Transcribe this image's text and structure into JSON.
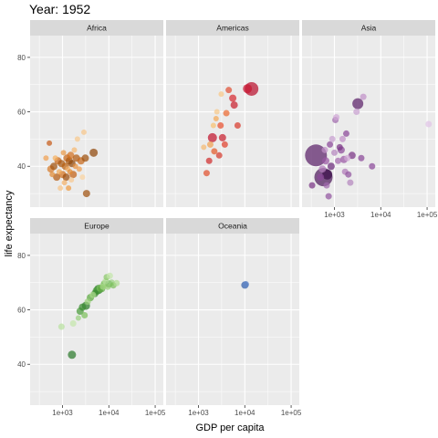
{
  "chart_data": {
    "type": "scatter",
    "title": "Year: 1952",
    "xlabel": "GDP per capita",
    "ylabel": "life expectancy",
    "x_scale": "log10",
    "xlim": [
      200,
      150000
    ],
    "ylim": [
      25,
      88
    ],
    "x_ticks": [
      {
        "value": 1000,
        "label": "1e+03"
      },
      {
        "value": 10000,
        "label": "1e+04"
      },
      {
        "value": 100000,
        "label": "1e+05"
      }
    ],
    "y_ticks": [
      {
        "value": 40,
        "label": "40"
      },
      {
        "value": 60,
        "label": "60"
      },
      {
        "value": 80,
        "label": "80"
      }
    ],
    "grid": true,
    "legend": "none",
    "panels": [
      {
        "name": "Africa",
        "points": [
          {
            "x": 440,
            "y": 43,
            "size": 3,
            "color": "#f0a050"
          },
          {
            "x": 520,
            "y": 48.5,
            "size": 3,
            "color": "#c65a18"
          },
          {
            "x": 560,
            "y": 39,
            "size": 4,
            "color": "#d57a2a"
          },
          {
            "x": 600,
            "y": 37,
            "size": 3,
            "color": "#e08a35"
          },
          {
            "x": 650,
            "y": 40,
            "size": 4,
            "color": "#a0520f"
          },
          {
            "x": 700,
            "y": 43,
            "size": 3,
            "color": "#f5b060"
          },
          {
            "x": 750,
            "y": 36,
            "size": 4,
            "color": "#b35c14"
          },
          {
            "x": 800,
            "y": 42,
            "size": 4,
            "color": "#c96618"
          },
          {
            "x": 850,
            "y": 38,
            "size": 3,
            "color": "#f0a858"
          },
          {
            "x": 900,
            "y": 32,
            "size": 3,
            "color": "#f7c486"
          },
          {
            "x": 950,
            "y": 41,
            "size": 4,
            "color": "#a6560f"
          },
          {
            "x": 1000,
            "y": 37,
            "size": 4,
            "color": "#d0701f"
          },
          {
            "x": 1050,
            "y": 45,
            "size": 3,
            "color": "#e89848"
          },
          {
            "x": 1100,
            "y": 34,
            "size": 3,
            "color": "#f2b068"
          },
          {
            "x": 1150,
            "y": 40,
            "size": 4,
            "color": "#b8600f"
          },
          {
            "x": 1200,
            "y": 36,
            "size": 4,
            "color": "#9b4c0c"
          },
          {
            "x": 1250,
            "y": 43,
            "size": 4,
            "color": "#c86618"
          },
          {
            "x": 1300,
            "y": 39,
            "size": 3,
            "color": "#f3b26a"
          },
          {
            "x": 1350,
            "y": 32,
            "size": 3,
            "color": "#ef9a40"
          },
          {
            "x": 1400,
            "y": 42,
            "size": 4,
            "color": "#a85810"
          },
          {
            "x": 1450,
            "y": 38,
            "size": 3,
            "color": "#e08a35"
          },
          {
            "x": 1500,
            "y": 44,
            "size": 4,
            "color": "#d17020"
          },
          {
            "x": 1550,
            "y": 35,
            "size": 3,
            "color": "#f7c890"
          },
          {
            "x": 1600,
            "y": 41,
            "size": 4,
            "color": "#8f460a"
          },
          {
            "x": 1700,
            "y": 37,
            "size": 4,
            "color": "#c26014"
          },
          {
            "x": 1800,
            "y": 46,
            "size": 3,
            "color": "#f5b870"
          },
          {
            "x": 1900,
            "y": 40,
            "size": 3,
            "color": "#e49040"
          },
          {
            "x": 2000,
            "y": 43,
            "size": 4,
            "color": "#b05a10"
          },
          {
            "x": 2100,
            "y": 50,
            "size": 3,
            "color": "#f7c88c"
          },
          {
            "x": 2300,
            "y": 39,
            "size": 3,
            "color": "#f0a050"
          },
          {
            "x": 2500,
            "y": 42,
            "size": 4,
            "color": "#c86a1c"
          },
          {
            "x": 2700,
            "y": 36,
            "size": 3,
            "color": "#f9d2a0"
          },
          {
            "x": 2900,
            "y": 52.5,
            "size": 3,
            "color": "#f7c68a"
          },
          {
            "x": 3100,
            "y": 43,
            "size": 4,
            "color": "#9e500c"
          },
          {
            "x": 3300,
            "y": 30,
            "size": 4,
            "color": "#a0520f"
          },
          {
            "x": 4700,
            "y": 45,
            "size": 4.5,
            "color": "#8f460a"
          }
        ]
      },
      {
        "name": "Americas",
        "points": [
          {
            "x": 1300,
            "y": 47,
            "size": 3,
            "color": "#f4b870"
          },
          {
            "x": 1500,
            "y": 37.5,
            "size": 3.5,
            "color": "#e0502e"
          },
          {
            "x": 1700,
            "y": 42,
            "size": 3.5,
            "color": "#d02c2c"
          },
          {
            "x": 1800,
            "y": 48,
            "size": 3.5,
            "color": "#f0a050"
          },
          {
            "x": 2000,
            "y": 50.5,
            "size": 5,
            "color": "#c0142c"
          },
          {
            "x": 2100,
            "y": 55,
            "size": 3,
            "color": "#f8c070"
          },
          {
            "x": 2200,
            "y": 45.5,
            "size": 3.5,
            "color": "#e35a2a"
          },
          {
            "x": 2400,
            "y": 57.5,
            "size": 3,
            "color": "#f4a855"
          },
          {
            "x": 2500,
            "y": 60,
            "size": 3,
            "color": "#f7c888"
          },
          {
            "x": 2800,
            "y": 44,
            "size": 3.5,
            "color": "#d43a2c"
          },
          {
            "x": 3000,
            "y": 55,
            "size": 3.5,
            "color": "#e84f2e"
          },
          {
            "x": 3100,
            "y": 66.5,
            "size": 3,
            "color": "#f8c886"
          },
          {
            "x": 3300,
            "y": 50.5,
            "size": 4,
            "color": "#c81e2e"
          },
          {
            "x": 3700,
            "y": 48,
            "size": 3.5,
            "color": "#e0402c"
          },
          {
            "x": 4000,
            "y": 59.5,
            "size": 3.5,
            "color": "#ec6a30"
          },
          {
            "x": 4500,
            "y": 68,
            "size": 3.5,
            "color": "#e05035"
          },
          {
            "x": 5500,
            "y": 65,
            "size": 4,
            "color": "#d52a30"
          },
          {
            "x": 5900,
            "y": 62.5,
            "size": 4,
            "color": "#c8202e"
          },
          {
            "x": 7000,
            "y": 55,
            "size": 3.5,
            "color": "#d83a2c"
          },
          {
            "x": 11400,
            "y": 68.5,
            "size": 5,
            "color": "#c81832"
          },
          {
            "x": 13990,
            "y": 68.4,
            "size": 7.5,
            "color": "#b80f2c"
          }
        ]
      },
      {
        "name": "Asia",
        "points": [
          {
            "x": 330,
            "y": 33,
            "size": 3.5,
            "color": "#7a3585"
          },
          {
            "x": 400,
            "y": 44,
            "size": 12,
            "color": "#5a2068"
          },
          {
            "x": 500,
            "y": 36,
            "size": 4,
            "color": "#8a4898"
          },
          {
            "x": 550,
            "y": 39,
            "size": 4,
            "color": "#b07ab8"
          },
          {
            "x": 580,
            "y": 36,
            "size": 10,
            "color": "#4e1a5c"
          },
          {
            "x": 620,
            "y": 46,
            "size": 3.5,
            "color": "#c090c8"
          },
          {
            "x": 650,
            "y": 42,
            "size": 4,
            "color": "#9a58a4"
          },
          {
            "x": 680,
            "y": 33,
            "size": 3.5,
            "color": "#a06aac"
          },
          {
            "x": 700,
            "y": 37,
            "size": 5.5,
            "color": "#3b0f4a"
          },
          {
            "x": 750,
            "y": 29,
            "size": 3.5,
            "color": "#9255a0"
          },
          {
            "x": 800,
            "y": 48,
            "size": 3.5,
            "color": "#8a4898"
          },
          {
            "x": 850,
            "y": 40,
            "size": 4,
            "color": "#6b2b7a"
          },
          {
            "x": 900,
            "y": 50,
            "size": 3.5,
            "color": "#c8a0d0"
          },
          {
            "x": 1000,
            "y": 45,
            "size": 3.5,
            "color": "#b487be"
          },
          {
            "x": 1050,
            "y": 57,
            "size": 3.5,
            "color": "#a06aac"
          },
          {
            "x": 1100,
            "y": 58,
            "size": 3.5,
            "color": "#d0a8d6"
          },
          {
            "x": 1200,
            "y": 42,
            "size": 3.5,
            "color": "#a66cb0"
          },
          {
            "x": 1300,
            "y": 47,
            "size": 3.5,
            "color": "#7a3585"
          },
          {
            "x": 1400,
            "y": 46,
            "size": 4,
            "color": "#8a4898"
          },
          {
            "x": 1500,
            "y": 50,
            "size": 3.5,
            "color": "#c090c8"
          },
          {
            "x": 1600,
            "y": 42.5,
            "size": 4,
            "color": "#9a58a4"
          },
          {
            "x": 1700,
            "y": 38,
            "size": 3.5,
            "color": "#b07ab8"
          },
          {
            "x": 1800,
            "y": 52,
            "size": 3.5,
            "color": "#8a4898"
          },
          {
            "x": 1900,
            "y": 43,
            "size": 3.5,
            "color": "#d0a8d6"
          },
          {
            "x": 2000,
            "y": 37,
            "size": 3.5,
            "color": "#9255a0"
          },
          {
            "x": 2200,
            "y": 34,
            "size": 3.5,
            "color": "#b487be"
          },
          {
            "x": 2400,
            "y": 44,
            "size": 4,
            "color": "#7a3585"
          },
          {
            "x": 3000,
            "y": 60,
            "size": 3.5,
            "color": "#c8a0d0"
          },
          {
            "x": 3200,
            "y": 63,
            "size": 6,
            "color": "#5a2068"
          },
          {
            "x": 3800,
            "y": 43,
            "size": 3.5,
            "color": "#8a4898"
          },
          {
            "x": 4200,
            "y": 65.5,
            "size": 3.5,
            "color": "#c090c8"
          },
          {
            "x": 6500,
            "y": 40,
            "size": 3.5,
            "color": "#8a4898"
          },
          {
            "x": 108000,
            "y": 55.5,
            "size": 3.5,
            "color": "#e0c4e6"
          }
        ]
      },
      {
        "name": "Europe",
        "points": [
          {
            "x": 1600,
            "y": 43.5,
            "size": 4.5,
            "color": "#2d7a2d"
          },
          {
            "x": 950,
            "y": 53.8,
            "size": 3.5,
            "color": "#b8e0a0"
          },
          {
            "x": 1700,
            "y": 55,
            "size": 3.5,
            "color": "#c4e6aa"
          },
          {
            "x": 2200,
            "y": 57,
            "size": 3,
            "color": "#98d080"
          },
          {
            "x": 2400,
            "y": 59.5,
            "size": 4,
            "color": "#4a9b3a"
          },
          {
            "x": 2700,
            "y": 61,
            "size": 4,
            "color": "#3a8a30"
          },
          {
            "x": 3000,
            "y": 58,
            "size": 3.5,
            "color": "#7cbf5c"
          },
          {
            "x": 3200,
            "y": 61.5,
            "size": 4.5,
            "color": "#2e7d2a"
          },
          {
            "x": 3500,
            "y": 63,
            "size": 3.5,
            "color": "#9ad07a"
          },
          {
            "x": 4000,
            "y": 64.5,
            "size": 4,
            "color": "#5aa83f"
          },
          {
            "x": 4500,
            "y": 65.5,
            "size": 3.5,
            "color": "#a8d888"
          },
          {
            "x": 5000,
            "y": 66,
            "size": 4,
            "color": "#3a8a30"
          },
          {
            "x": 5500,
            "y": 67,
            "size": 4.5,
            "color": "#4a9b3a"
          },
          {
            "x": 6000,
            "y": 67.5,
            "size": 5,
            "color": "#2e7d2a"
          },
          {
            "x": 6500,
            "y": 68,
            "size": 4,
            "color": "#7cbf5c"
          },
          {
            "x": 7000,
            "y": 67.8,
            "size": 4,
            "color": "#5aa83f"
          },
          {
            "x": 7500,
            "y": 68.5,
            "size": 3.5,
            "color": "#a8d888"
          },
          {
            "x": 8000,
            "y": 69.5,
            "size": 4,
            "color": "#6ab84a"
          },
          {
            "x": 8500,
            "y": 70.5,
            "size": 3.5,
            "color": "#b8e0a0"
          },
          {
            "x": 9000,
            "y": 72,
            "size": 3.5,
            "color": "#8ac86a"
          },
          {
            "x": 9500,
            "y": 68.5,
            "size": 3.5,
            "color": "#9ad07a"
          },
          {
            "x": 10000,
            "y": 69.5,
            "size": 4,
            "color": "#4a9b3a"
          },
          {
            "x": 10500,
            "y": 72.5,
            "size": 3.5,
            "color": "#c4e6aa"
          },
          {
            "x": 11500,
            "y": 70,
            "size": 3.5,
            "color": "#98d080"
          },
          {
            "x": 12500,
            "y": 69,
            "size": 3.5,
            "color": "#7cbf5c"
          },
          {
            "x": 14700,
            "y": 69.8,
            "size": 3.5,
            "color": "#b0dc94"
          }
        ]
      },
      {
        "name": "Oceania",
        "points": [
          {
            "x": 10040,
            "y": 69.1,
            "size": 4,
            "color": "#2f5ba8"
          },
          {
            "x": 10557,
            "y": 69.4,
            "size": 3.5,
            "color": "#5f86c7"
          }
        ]
      }
    ]
  }
}
